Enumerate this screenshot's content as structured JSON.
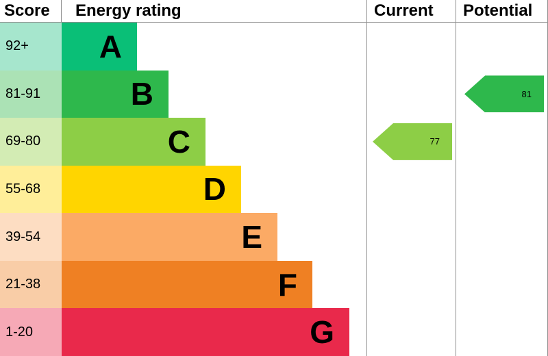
{
  "header": {
    "score": "Score",
    "energy_rating": "Energy rating",
    "current": "Current",
    "potential": "Potential"
  },
  "chart_data": {
    "type": "bar",
    "description": "Energy performance certificate (EPC) energy efficiency rating bands with current and potential scores",
    "bands": [
      {
        "letter": "A",
        "range": "92+",
        "color": "#0abf77",
        "tint": "#a6e6cd"
      },
      {
        "letter": "B",
        "range": "81-91",
        "color": "#2eb84c",
        "tint": "#abe2b5"
      },
      {
        "letter": "C",
        "range": "69-80",
        "color": "#8dce46",
        "tint": "#d3ecb4"
      },
      {
        "letter": "D",
        "range": "55-68",
        "color": "#ffd500",
        "tint": "#ffee99"
      },
      {
        "letter": "E",
        "range": "39-54",
        "color": "#fbaa65",
        "tint": "#fdddc2"
      },
      {
        "letter": "F",
        "range": "21-38",
        "color": "#ef8023",
        "tint": "#f9cda7"
      },
      {
        "letter": "G",
        "range": "1-20",
        "color": "#e9294b",
        "tint": "#f6a9b6"
      }
    ],
    "current": {
      "value": 77,
      "band": "C",
      "color": "#8dce46"
    },
    "potential": {
      "value": 81,
      "band": "B",
      "color": "#2eb84c"
    }
  }
}
